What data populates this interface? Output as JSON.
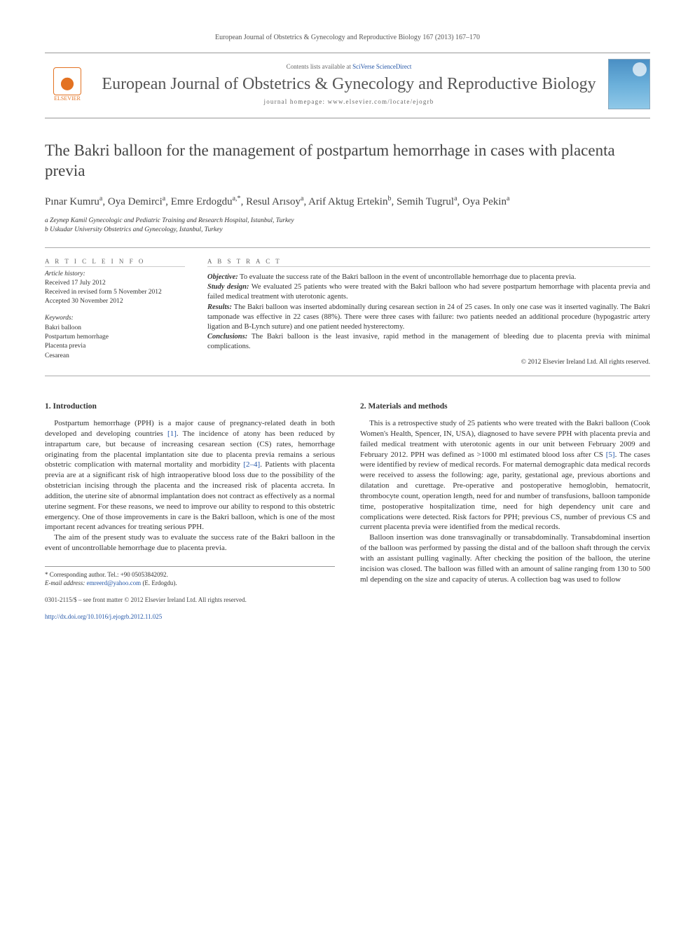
{
  "citation": "European Journal of Obstetrics & Gynecology and Reproductive Biology 167 (2013) 167–170",
  "banner": {
    "contents_prefix": "Contents lists available at ",
    "contents_link": "SciVerse ScienceDirect",
    "journal_name": "European Journal of Obstetrics & Gynecology and Reproductive Biology",
    "homepage_label": "journal homepage: www.elsevier.com/locate/ejogrb",
    "publisher": "ELSEVIER"
  },
  "title": "The Bakri balloon for the management of postpartum hemorrhage in cases with placenta previa",
  "authors_html": "Pınar Kumru<sup>a</sup>, Oya Demirci<sup>a</sup>, Emre Erdogdu<sup>a,*</sup>, Resul Arısoy<sup>a</sup>, Arif Aktug Ertekin<sup>b</sup>, Semih Tugrul<sup>a</sup>, Oya Pekin<sup>a</sup>",
  "affiliations": [
    "a Zeynep Kamil Gynecologic and Pediatric Training and Research Hospital, Istanbul, Turkey",
    "b Uskudar University Obstetrics and Gynecology, Istanbul, Turkey"
  ],
  "article_info": {
    "heading": "A R T I C L E   I N F O",
    "history_label": "Article history:",
    "received": "Received 17 July 2012",
    "revised": "Received in revised form 5 November 2012",
    "accepted": "Accepted 30 November 2012",
    "keywords_label": "Keywords:",
    "keywords": [
      "Bakri balloon",
      "Postpartum hemorrhage",
      "Placenta previa",
      "Cesarean"
    ]
  },
  "abstract": {
    "heading": "A B S T R A C T",
    "objective_label": "Objective:",
    "objective": " To evaluate the success rate of the Bakri balloon in the event of uncontrollable hemorrhage due to placenta previa.",
    "design_label": "Study design:",
    "design": " We evaluated 25 patients who were treated with the Bakri balloon who had severe postpartum hemorrhage with placenta previa and failed medical treatment with uterotonic agents.",
    "results_label": "Results:",
    "results": " The Bakri balloon was inserted abdominally during cesarean section in 24 of 25 cases. In only one case was it inserted vaginally. The Bakri tamponade was effective in 22 cases (88%). There were three cases with failure: two patients needed an additional procedure (hypogastric artery ligation and B-Lynch suture) and one patient needed hysterectomy.",
    "conclusions_label": "Conclusions:",
    "conclusions": " The Bakri balloon is the least invasive, rapid method in the management of bleeding due to placenta previa with minimal complications.",
    "copyright": "© 2012 Elsevier Ireland Ltd. All rights reserved."
  },
  "sections": {
    "intro_head": "1. Introduction",
    "intro_p1": "Postpartum hemorrhage (PPH) is a major cause of pregnancy-related death in both developed and developing countries [1]. The incidence of atony has been reduced by intrapartum care, but because of increasing cesarean section (CS) rates, hemorrhage originating from the placental implantation site due to placenta previa remains a serious obstetric complication with maternal mortality and morbidity [2–4]. Patients with placenta previa are at a significant risk of high intraoperative blood loss due to the possibility of the obstetrician incising through the placenta and the increased risk of placenta accreta. In addition, the uterine site of abnormal implantation does not contract as effectively as a normal uterine segment. For these reasons, we need to improve our ability to respond to this obstetric emergency. One of those improvements in care is the Bakri balloon, which is one of the most important recent advances for treating serious PPH.",
    "intro_p2": "The aim of the present study was to evaluate the success rate of the Bakri balloon in the event of uncontrollable hemorrhage due to placenta previa.",
    "methods_head": "2. Materials and methods",
    "methods_p1": "This is a retrospective study of 25 patients who were treated with the Bakri balloon (Cook Women's Health, Spencer, IN, USA), diagnosed to have severe PPH with placenta previa and failed medical treatment with uterotonic agents in our unit between February 2009 and February 2012. PPH was defined as >1000 ml estimated blood loss after CS [5]. The cases were identified by review of medical records. For maternal demographic data medical records were received to assess the following: age, parity, gestational age, previous abortions and dilatation and curettage. Pre-operative and postoperative hemoglobin, hematocrit, thrombocyte count, operation length, need for and number of transfusions, balloon tamponide time, postoperative hospitalization time, need for high dependency unit care and complications were detected. Risk factors for PPH; previous CS, number of previous CS and current placenta previa were identified from the medical records.",
    "methods_p2": "Balloon insertion was done transvaginally or transabdominally. Transabdominal insertion of the balloon was performed by passing the distal and of the balloon shaft through the cervix with an assistant pulling vaginally. After checking the position of the balloon, the uterine incision was closed. The balloon was filled with an amount of saline ranging from 130 to 500 ml depending on the size and capacity of uterus. A collection bag was used to follow"
  },
  "footnotes": {
    "corresponding": "* Corresponding author. Tel.: +90 05053842092.",
    "email_label": "E-mail address:",
    "email": "emreerd@yahoo.com",
    "email_who": " (E. Erdogdu)."
  },
  "footer": {
    "line": "0301-2115/$ – see front matter © 2012 Elsevier Ireland Ltd. All rights reserved.",
    "doi": "http://dx.doi.org/10.1016/j.ejogrb.2012.11.025"
  },
  "colors": {
    "link": "#2557a8",
    "accent": "#e37222",
    "rule": "#999999",
    "text": "#333333"
  }
}
